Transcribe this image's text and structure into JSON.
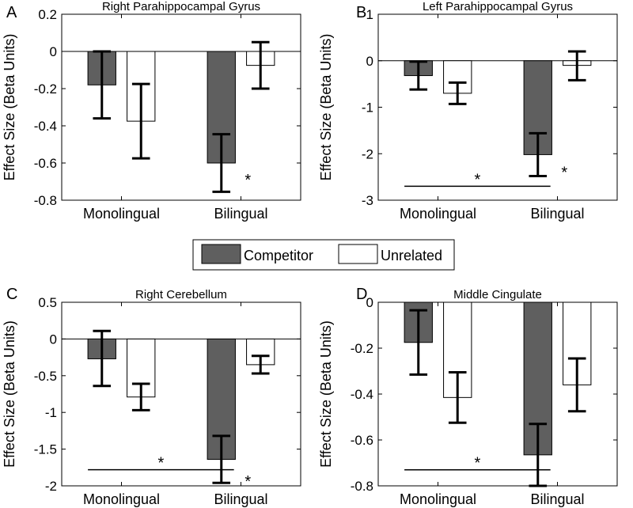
{
  "legend": {
    "items": [
      {
        "label": "Competitor",
        "color": "#5f5f5f"
      },
      {
        "label": "Unrelated",
        "color": "#ffffff"
      }
    ]
  },
  "chart_data": [
    {
      "letter": "A",
      "type": "bar",
      "title": "Right Parahippocampal Gyrus",
      "ylabel": "Effect Size (Beta Units)",
      "xlabel": "",
      "categories": [
        "Monolingual",
        "Bilingual"
      ],
      "ylim": [
        -0.8,
        0.2
      ],
      "yticks": [
        0.2,
        0,
        -0.2,
        -0.4,
        -0.6,
        -0.8
      ],
      "ytick_labels": [
        "0.2",
        "0",
        "-0.2",
        "-0.4",
        "-0.6",
        "-0.8"
      ],
      "grid": false,
      "zero_line": true,
      "series": [
        {
          "name": "Competitor",
          "values": [
            -0.18,
            -0.6
          ],
          "err_low": [
            -0.36,
            -0.755
          ],
          "err_high": [
            0.0,
            -0.445
          ]
        },
        {
          "name": "Unrelated",
          "values": [
            -0.375,
            -0.075
          ],
          "err_low": [
            -0.575,
            -0.2
          ],
          "err_high": [
            -0.175,
            0.05
          ]
        }
      ],
      "annotations": [
        {
          "text": "*",
          "category": 1,
          "series": 0,
          "y": -0.66
        }
      ],
      "brackets": []
    },
    {
      "letter": "B",
      "type": "bar",
      "title": "Left Parahippocampal Gyrus",
      "ylabel": "Effect Size (Beta Units)",
      "xlabel": "",
      "categories": [
        "Monolingual",
        "Bilingual"
      ],
      "ylim": [
        -3,
        1
      ],
      "yticks": [
        1,
        0,
        -1,
        -2,
        -3
      ],
      "ytick_labels": [
        "1",
        "0",
        "-1",
        "-2",
        "-3"
      ],
      "grid": false,
      "zero_line": true,
      "series": [
        {
          "name": "Competitor",
          "values": [
            -0.32,
            -2.02
          ],
          "err_low": [
            -0.62,
            -2.48
          ],
          "err_high": [
            -0.02,
            -1.56
          ]
        },
        {
          "name": "Unrelated",
          "values": [
            -0.7,
            -0.1
          ],
          "err_low": [
            -0.93,
            -0.42
          ],
          "err_high": [
            -0.47,
            0.2
          ]
        }
      ],
      "annotations": [
        {
          "text": "*",
          "category": 1,
          "series": 0,
          "y": -2.28
        }
      ],
      "brackets": [
        {
          "text": "*",
          "from": 0,
          "to": 1,
          "y": -2.7
        }
      ]
    },
    {
      "letter": "C",
      "type": "bar",
      "title": "Right Cerebellum",
      "ylabel": "Effect Size (Beta Units)",
      "xlabel": "",
      "categories": [
        "Monolingual",
        "Bilingual"
      ],
      "ylim": [
        -2,
        0.5
      ],
      "yticks": [
        0.5,
        0,
        -0.5,
        -1,
        -1.5,
        -2
      ],
      "ytick_labels": [
        "0.5",
        "0",
        "-0.5",
        "-1",
        "-1.5",
        "-2"
      ],
      "grid": false,
      "zero_line": true,
      "series": [
        {
          "name": "Competitor",
          "values": [
            -0.27,
            -1.64
          ],
          "err_low": [
            -0.64,
            -1.96
          ],
          "err_high": [
            0.11,
            -1.32
          ]
        },
        {
          "name": "Unrelated",
          "values": [
            -0.79,
            -0.35
          ],
          "err_low": [
            -0.97,
            -0.47
          ],
          "err_high": [
            -0.61,
            -0.23
          ]
        }
      ],
      "annotations": [
        {
          "text": "*",
          "category": 1,
          "series": 0,
          "y": -1.86
        }
      ],
      "brackets": [
        {
          "text": "*",
          "from": 0,
          "to": 1,
          "y": -1.78
        }
      ]
    },
    {
      "letter": "D",
      "type": "bar",
      "title": "Middle Cingulate",
      "ylabel": "Effect Size (Beta Units)",
      "xlabel": "",
      "categories": [
        "Monolingual",
        "Bilingual"
      ],
      "ylim": [
        -0.8,
        0
      ],
      "yticks": [
        0,
        -0.2,
        -0.4,
        -0.6,
        -0.8
      ],
      "ytick_labels": [
        "0",
        "-0.2",
        "-0.4",
        "-0.6",
        "-0.8"
      ],
      "grid": false,
      "zero_line": false,
      "series": [
        {
          "name": "Competitor",
          "values": [
            -0.175,
            -0.665
          ],
          "err_low": [
            -0.315,
            -0.8
          ],
          "err_high": [
            -0.035,
            -0.53
          ]
        },
        {
          "name": "Unrelated",
          "values": [
            -0.415,
            -0.36
          ],
          "err_low": [
            -0.525,
            -0.475
          ],
          "err_high": [
            -0.305,
            -0.245
          ]
        }
      ],
      "annotations": [],
      "brackets": [
        {
          "text": "*",
          "from": 0,
          "to": 1,
          "y": -0.73
        }
      ]
    }
  ]
}
